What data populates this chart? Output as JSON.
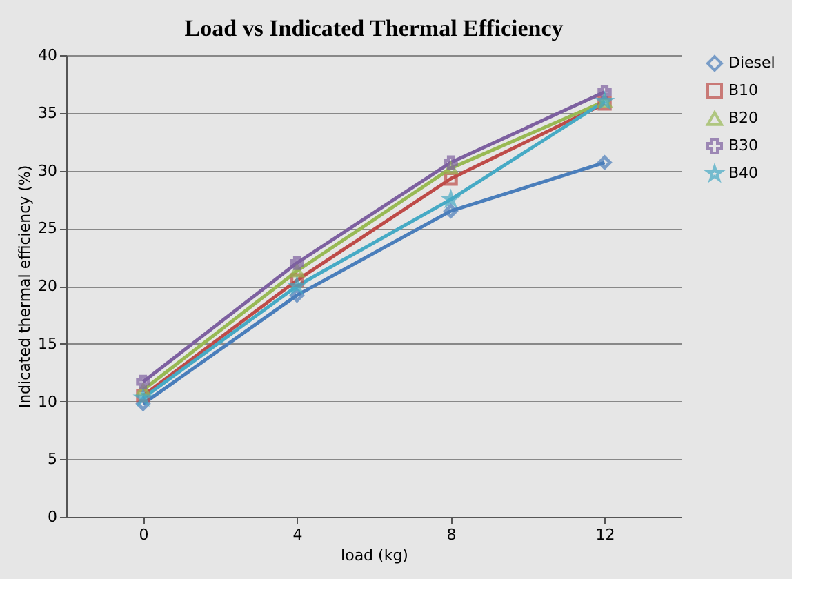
{
  "chart_data": {
    "type": "line",
    "title": "Load vs Indicated Thermal Efficiency",
    "xlabel": "load (kg)",
    "ylabel": "Indicated thermal efficiency (%)",
    "categories": [
      "0",
      "4",
      "8",
      "12"
    ],
    "series": [
      {
        "name": "Diesel",
        "color": "#4a7ebb",
        "marker": "diamond",
        "values": [
          9.8,
          19.2,
          26.5,
          30.7
        ]
      },
      {
        "name": "B10",
        "color": "#be4b48",
        "marker": "square",
        "values": [
          10.5,
          20.5,
          29.3,
          35.8
        ]
      },
      {
        "name": "B20",
        "color": "#98b954",
        "marker": "triangle",
        "values": [
          11,
          21.3,
          30.2,
          36
        ]
      },
      {
        "name": "B30",
        "color": "#7d60a0",
        "marker": "cross",
        "values": [
          11.7,
          22,
          30.7,
          36.8
        ]
      },
      {
        "name": "B40",
        "color": "#46aac5",
        "marker": "star",
        "values": [
          10.3,
          20,
          27.5,
          36
        ]
      }
    ],
    "ylim": [
      0,
      40
    ],
    "yticks": [
      0,
      5,
      10,
      15,
      20,
      25,
      30,
      35,
      40
    ],
    "grid": "y",
    "legend": "right",
    "line_style": "solid"
  }
}
